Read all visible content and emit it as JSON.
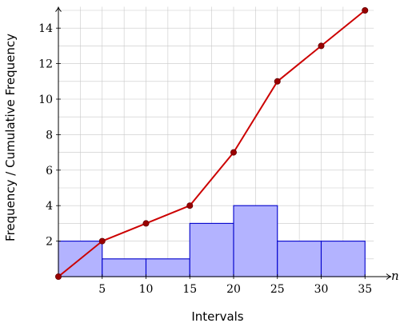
{
  "chart_data": {
    "type": "bar",
    "xlabel": "Intervals",
    "ylabel": "Frequency / Cumulative Frequency",
    "x_axis_symbol": "n",
    "xlim": [
      0,
      38
    ],
    "ylim": [
      0,
      15.2
    ],
    "x_ticks": [
      5,
      10,
      15,
      20,
      25,
      30,
      35
    ],
    "y_ticks": [
      2,
      4,
      6,
      8,
      10,
      12,
      14
    ],
    "grid": true,
    "histogram": {
      "bins": [
        {
          "start": 0,
          "end": 5,
          "value": 2
        },
        {
          "start": 5,
          "end": 10,
          "value": 1
        },
        {
          "start": 10,
          "end": 15,
          "value": 1
        },
        {
          "start": 15,
          "end": 20,
          "value": 3
        },
        {
          "start": 20,
          "end": 25,
          "value": 4
        },
        {
          "start": 25,
          "end": 30,
          "value": 2
        },
        {
          "start": 30,
          "end": 35,
          "value": 2
        }
      ],
      "fill_color": "#b3b3ff",
      "edge_color": "#0000cc"
    },
    "cumulative": {
      "x": [
        0,
        5,
        10,
        15,
        20,
        25,
        30,
        35
      ],
      "y": [
        0,
        2,
        3,
        4,
        7,
        11,
        13,
        15
      ],
      "line_color": "#cc0000",
      "marker_color": "#990000"
    }
  }
}
